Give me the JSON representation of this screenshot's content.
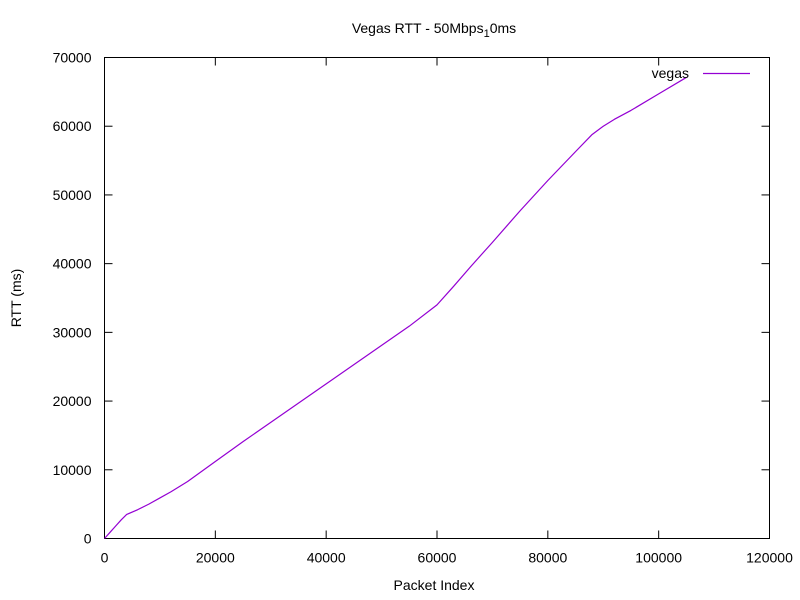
{
  "chart_data": {
    "type": "line",
    "title_main": "Vegas RTT - 50Mbps",
    "title_sub": "1",
    "title_tail": "0ms",
    "xlabel": "Packet Index",
    "ylabel": "RTT (ms)",
    "xlim": [
      0,
      120000
    ],
    "ylim": [
      0,
      70000
    ],
    "xticks": [
      0,
      20000,
      40000,
      60000,
      80000,
      100000,
      120000
    ],
    "yticks": [
      0,
      10000,
      20000,
      30000,
      40000,
      50000,
      60000,
      70000
    ],
    "grid": false,
    "legend_position": "top-right",
    "series": [
      {
        "name": "vegas",
        "color": "#9400d3",
        "x": [
          0,
          1000,
          2000,
          3000,
          4000,
          6000,
          8000,
          10000,
          12000,
          15000,
          20000,
          25000,
          30000,
          35000,
          40000,
          45000,
          50000,
          55000,
          60000,
          63000,
          66000,
          70000,
          75000,
          80000,
          85000,
          88000,
          90000,
          92000,
          95000,
          100000,
          105000
        ],
        "y": [
          0,
          900,
          1800,
          2700,
          3500,
          4200,
          5000,
          5900,
          6800,
          8300,
          11200,
          14100,
          16900,
          19700,
          22500,
          25300,
          28100,
          30900,
          34000,
          36700,
          39500,
          43100,
          47700,
          52100,
          56300,
          58800,
          60000,
          61000,
          62300,
          64700,
          67100
        ]
      }
    ]
  }
}
